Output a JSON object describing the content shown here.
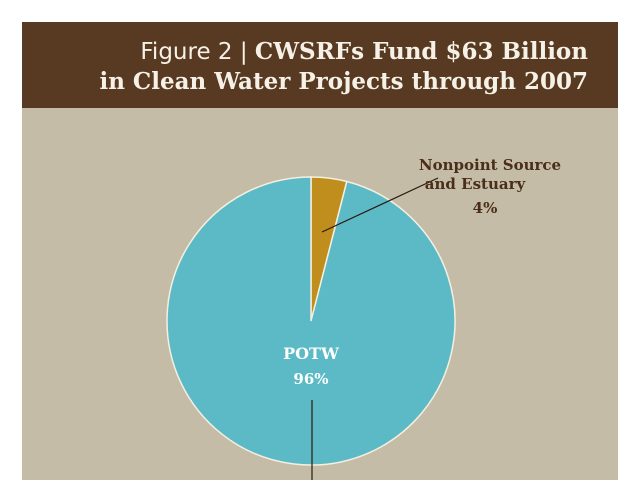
{
  "header": {
    "figure_label": "Figure 2 | ",
    "title_line1": "CWSRFs Fund $63 Billion",
    "title_line2": "in Clean Water Projects through 2007"
  },
  "colors": {
    "header": "#583a22",
    "background": "#c4bca6",
    "potw": "#5bbac6",
    "nonpoint": "#c08e1c",
    "label_dark": "#4a2e1a"
  },
  "chart_data": {
    "type": "pie",
    "title": "Figure 2 | CWSRFs Fund $63 Billion in Clean Water Projects through 2007",
    "slices": [
      {
        "name": "Nonpoint Source and Estuary",
        "label_lines": [
          "Nonpoint Source",
          "and Estuary"
        ],
        "value": 4,
        "value_label": "4%",
        "color": "#c08e1c"
      },
      {
        "name": "POTW",
        "label_lines": [
          "POTW"
        ],
        "value": 96,
        "value_label": "96%",
        "color": "#5bbac6"
      }
    ]
  }
}
